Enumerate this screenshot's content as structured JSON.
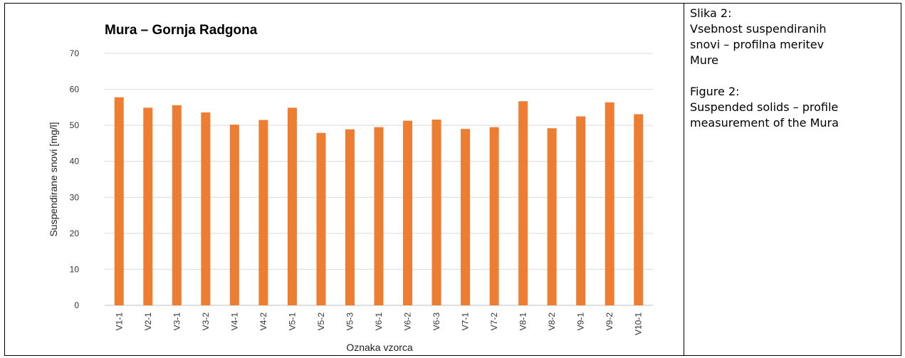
{
  "chart_data": {
    "type": "bar",
    "title": "Mura – Gornja Radgona",
    "xlabel": "Oznaka vzorca",
    "ylabel": "Suspendirane snovi [mg/l]",
    "ylim": [
      0,
      70
    ],
    "yticks": [
      0,
      10,
      20,
      30,
      40,
      50,
      60,
      70
    ],
    "grid": true,
    "legend": "none",
    "bar_color": "#ED7D31",
    "categories": [
      "V1-1",
      "V2-1",
      "V3-1",
      "V3-2",
      "V4-1",
      "V4-2",
      "V5-1",
      "V5-2",
      "V5-3",
      "V6-1",
      "V6-2",
      "V6-3",
      "V7-1",
      "V7-2",
      "V8-1",
      "V8-2",
      "V9-1",
      "V9-2",
      "V10-1"
    ],
    "values": [
      57.8,
      54.9,
      55.6,
      53.6,
      50.2,
      51.5,
      54.9,
      47.9,
      48.9,
      49.5,
      51.3,
      51.6,
      49.0,
      49.5,
      56.7,
      49.2,
      52.5,
      56.4,
      53.1
    ]
  },
  "caption": {
    "sl_line1": "Slika 2:",
    "sl_line2": "Vsebnost suspendiranih",
    "sl_line3": "snovi – profilna meritev",
    "sl_line4": "Mure",
    "en_line1": "Figure 2:",
    "en_line2": "Suspended solids – profile",
    "en_line3": "measurement of the Mura"
  }
}
